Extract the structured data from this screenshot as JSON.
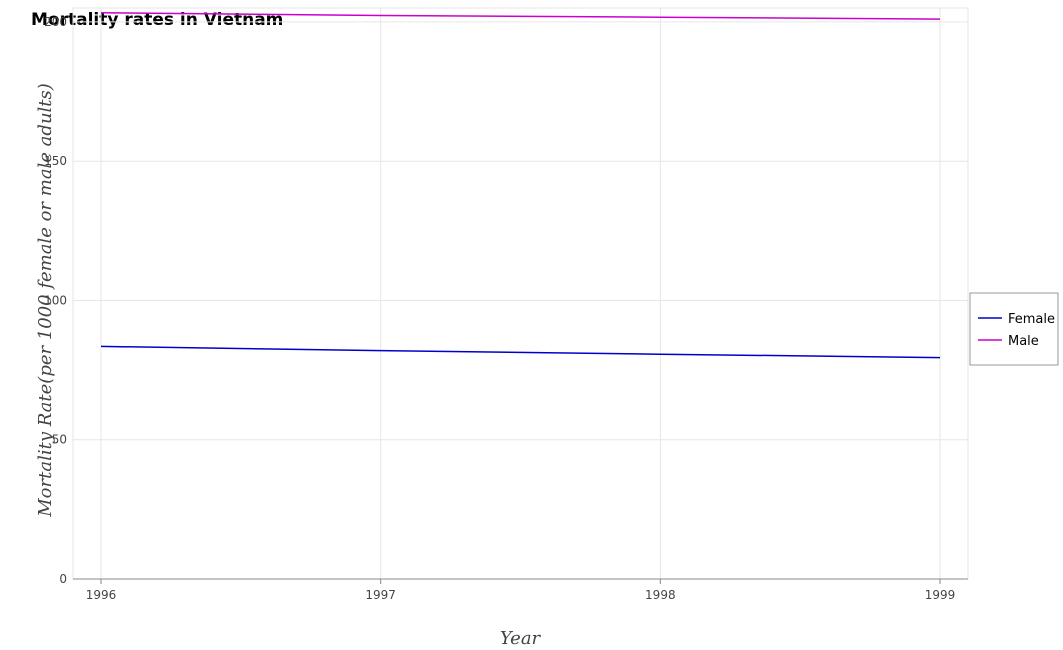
{
  "chart_data": {
    "type": "line",
    "title": "Mortality rates in Vietnam",
    "xlabel": "Year",
    "ylabel": "Mortality Rate(per 1000 female or male adults)",
    "categories": [
      "1996",
      "1997",
      "1998",
      "1999"
    ],
    "series": [
      {
        "name": "Female",
        "color": "#0000cc",
        "values": [
          83.5,
          82.0,
          80.7,
          79.5
        ]
      },
      {
        "name": "Male",
        "color": "#cc00cc",
        "values": [
          203.3,
          202.3,
          201.7,
          201.0
        ]
      }
    ],
    "yticks": [
      0,
      50,
      100,
      150,
      200
    ],
    "ylim": [
      0,
      205
    ],
    "grid": true,
    "legend_position": "right"
  }
}
